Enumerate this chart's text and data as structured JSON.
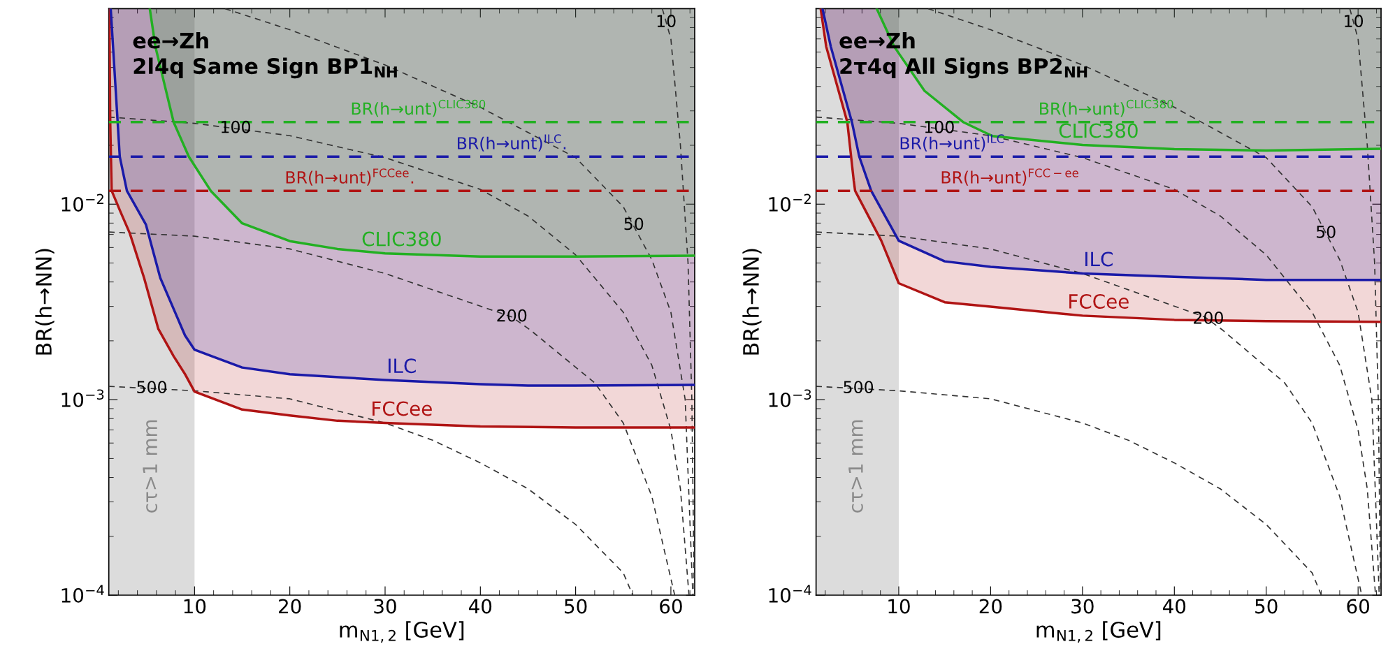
{
  "chart_data": [
    {
      "type": "line",
      "title": "ee→Zh\n2l4q Same Sign BP1$_{NH}$",
      "xlabel": "m$_{N1,2}$ [GeV]",
      "ylabel": "BR(h→NN)",
      "log": "y",
      "xlim": [
        1,
        62.5
      ],
      "xticks": [
        10,
        20,
        30,
        40,
        50,
        60
      ],
      "ylim": [
        0.0001,
        0.1
      ],
      "yticks": [
        {
          "value": 0.0001,
          "label": "10$^{−4}$"
        },
        {
          "value": 0.001,
          "label": "10$^{−3}$"
        },
        {
          "value": 0.01,
          "label": "10$^{−2}$"
        }
      ],
      "series": [
        {
          "name": "FCCee",
          "color": "#b01414",
          "line_style": "solid",
          "x": [
            1.05,
            1.15,
            1.3,
            2.2,
            3.2,
            4.7,
            6.2,
            7.8,
            9,
            10,
            15,
            20,
            25,
            30,
            40,
            50,
            62.5
          ],
          "values": [
            0.1,
            0.026,
            0.0117,
            0.0092,
            0.0071,
            0.0042,
            0.0023,
            0.00167,
            0.00135,
            0.0011,
            0.00089,
            0.00083,
            0.00078,
            0.00076,
            0.00073,
            0.00072,
            0.00072
          ]
        },
        {
          "name": "ILC",
          "color": "#1a1aa8",
          "line_style": "solid",
          "x": [
            1.2,
            2.15,
            2.9,
            4.9,
            6.4,
            9,
            10,
            15,
            20,
            30,
            40,
            45,
            50,
            62.5
          ],
          "values": [
            0.1,
            0.0175,
            0.0117,
            0.00785,
            0.0042,
            0.00213,
            0.0018,
            0.00146,
            0.00135,
            0.00126,
            0.0012,
            0.00118,
            0.00118,
            0.00119
          ]
        },
        {
          "name": "CLIC380",
          "color": "#22b022",
          "line_style": "solid",
          "x": [
            5.3,
            5.9,
            7.8,
            9.4,
            11.7,
            15,
            20,
            25,
            30,
            40,
            50,
            62.5
          ],
          "values": [
            0.1,
            0.0636,
            0.0263,
            0.0175,
            0.0117,
            0.00798,
            0.00647,
            0.0059,
            0.0056,
            0.0054,
            0.0054,
            0.00545
          ]
        },
        {
          "color": "#333333",
          "line_style": "dashed",
          "x": [
            1,
            10,
            20,
            30,
            35,
            40,
            45,
            50,
            55,
            56
          ],
          "values": [
            0.00117,
            0.00111,
            0.00101,
            0.00076,
            0.00062,
            0.000475,
            0.00035,
            0.00023,
            0.00013,
            0.0001
          ]
        },
        {
          "color": "#333333",
          "line_style": "dashed",
          "x": [
            1,
            10,
            20,
            30,
            43.3,
            45.2,
            52,
            55,
            58,
            60.4
          ],
          "values": [
            0.0072,
            0.00686,
            0.0059,
            0.00442,
            0.00265,
            0.00228,
            0.00122,
            0.00076,
            0.00032,
            0.0001
          ]
        },
        {
          "color": "#333333",
          "line_style": "dashed",
          "x": [
            1,
            10,
            20,
            30,
            40,
            45,
            50,
            55,
            58,
            60,
            61,
            61.9
          ],
          "values": [
            0.0279,
            0.0259,
            0.0224,
            0.0173,
            0.0119,
            0.0087,
            0.0055,
            0.0028,
            0.0015,
            0.0007,
            0.00035,
            0.0001
          ]
        },
        {
          "color": "#333333",
          "line_style": "dashed",
          "x": [
            13.2,
            20,
            30,
            40,
            50,
            55,
            58,
            60,
            61.5,
            62.3
          ],
          "values": [
            0.1,
            0.078,
            0.0515,
            0.0313,
            0.0173,
            0.0097,
            0.0052,
            0.0028,
            0.001,
            0.0001
          ]
        },
        {
          "color": "#333333",
          "line_style": "dashed",
          "x": [
            59.1,
            60,
            61,
            61.8,
            62.2,
            62.45
          ],
          "values": [
            0.1,
            0.07,
            0.02,
            0.005,
            0.001,
            0.0001
          ]
        }
      ],
      "ref_lines": [
        {
          "axis": "y",
          "value": 0.0263,
          "color": "#22b022",
          "line_style": "dashed"
        },
        {
          "axis": "y",
          "value": 0.0175,
          "color": "#1a1aa8",
          "line_style": "dashed"
        },
        {
          "axis": "y",
          "value": 0.0117,
          "color": "#b01414",
          "line_style": "dashed"
        }
      ],
      "bands": [
        {
          "axis": "x",
          "from": 1,
          "to": 10,
          "label": "cτ>1 mm",
          "color": "#dcdcdc"
        }
      ],
      "annotations": [
        {
          "text": "BR(h→unt)$^{CLIC380}$",
          "x": 33.5,
          "y": 0.0263
        },
        {
          "text": "BR(h→unt)$^{ILC}$.",
          "x": 43.3,
          "y": 0.0175
        },
        {
          "text": "BR(h→unt)$^{FCCee}$.",
          "x": 26.3,
          "y": 0.0117
        },
        {
          "text": "10",
          "x": 59.5,
          "y": 0.085
        },
        {
          "text": "100",
          "x": 14.3,
          "y": 0.0244
        },
        {
          "text": "50",
          "x": 56.1,
          "y": 0.0078
        },
        {
          "text": "200",
          "x": 43.3,
          "y": 0.00265
        },
        {
          "text": "500",
          "x": 5.5,
          "y": 0.00114
        }
      ]
    },
    {
      "type": "line",
      "title": "ee→Zh\n2τ4q All Signs BP2$_{NH}$",
      "xlabel": "m$_{N1,2}$ [GeV]",
      "ylabel": "BR(h→NN)",
      "log": "y",
      "xlim": [
        1,
        62.5
      ],
      "xticks": [
        10,
        20,
        30,
        40,
        50,
        60
      ],
      "ylim": [
        0.0001,
        0.1
      ],
      "yticks": [
        {
          "value": 0.0001,
          "label": "10$^{−4}$"
        },
        {
          "value": 0.001,
          "label": "10$^{−3}$"
        },
        {
          "value": 0.01,
          "label": "10$^{−2}$"
        }
      ],
      "series": [
        {
          "name": "FCCee",
          "color": "#b01414",
          "line_style": "solid",
          "x": [
            1.5,
            2.1,
            4.4,
            5.1,
            5.25,
            8.1,
            10,
            15,
            20,
            30,
            40,
            50,
            62.5
          ],
          "values": [
            0.1,
            0.064,
            0.0263,
            0.0132,
            0.0117,
            0.0065,
            0.00394,
            0.00315,
            0.00299,
            0.00269,
            0.00256,
            0.00252,
            0.0025
          ]
        },
        {
          "name": "ILC",
          "color": "#1a1aa8",
          "line_style": "solid",
          "x": [
            1.7,
            2.6,
            4.9,
            5.7,
            7,
            10,
            15,
            20,
            30,
            40,
            50,
            62.5
          ],
          "values": [
            0.1,
            0.064,
            0.0263,
            0.0175,
            0.0117,
            0.0065,
            0.0051,
            0.00478,
            0.00442,
            0.00425,
            0.0041,
            0.0041
          ]
        },
        {
          "name": "CLIC380",
          "color": "#22b022",
          "line_style": "solid",
          "x": [
            7.6,
            9.5,
            12.8,
            17,
            20.2,
            30,
            40,
            50,
            62.5
          ],
          "values": [
            0.1,
            0.064,
            0.038,
            0.0263,
            0.0223,
            0.0201,
            0.0191,
            0.0188,
            0.0192
          ]
        },
        {
          "color": "#333333",
          "line_style": "dashed",
          "x": [
            1,
            10,
            20,
            30,
            35,
            40,
            45,
            50,
            55,
            56
          ],
          "values": [
            0.00117,
            0.00111,
            0.00101,
            0.00076,
            0.00062,
            0.000475,
            0.00035,
            0.00023,
            0.00013,
            0.0001
          ]
        },
        {
          "color": "#333333",
          "line_style": "dashed",
          "x": [
            1,
            10,
            20,
            30,
            43.3,
            45.2,
            52,
            55,
            58,
            60.4
          ],
          "values": [
            0.0072,
            0.00686,
            0.0059,
            0.00442,
            0.00265,
            0.00228,
            0.00122,
            0.00076,
            0.00032,
            0.0001
          ]
        },
        {
          "color": "#333333",
          "line_style": "dashed",
          "x": [
            1,
            10,
            20,
            30,
            40,
            45,
            50,
            55,
            58,
            60,
            61,
            61.9
          ],
          "values": [
            0.0279,
            0.0259,
            0.0224,
            0.0173,
            0.0119,
            0.0087,
            0.0055,
            0.0028,
            0.0015,
            0.0007,
            0.00035,
            0.0001
          ]
        },
        {
          "color": "#333333",
          "line_style": "dashed",
          "x": [
            13.2,
            20,
            30,
            40,
            50,
            55,
            58,
            60,
            61.5,
            62.3
          ],
          "values": [
            0.1,
            0.078,
            0.0515,
            0.0313,
            0.0173,
            0.0097,
            0.0052,
            0.0028,
            0.001,
            0.0001
          ]
        },
        {
          "color": "#333333",
          "line_style": "dashed",
          "x": [
            59.1,
            60,
            61,
            61.8,
            62.2,
            62.45
          ],
          "values": [
            0.1,
            0.07,
            0.02,
            0.005,
            0.001,
            0.0001
          ]
        }
      ],
      "ref_lines": [
        {
          "axis": "y",
          "value": 0.0263,
          "color": "#22b022",
          "line_style": "dashed"
        },
        {
          "axis": "y",
          "value": 0.0175,
          "color": "#1a1aa8",
          "line_style": "dashed"
        },
        {
          "axis": "y",
          "value": 0.0117,
          "color": "#b01414",
          "line_style": "dashed"
        }
      ],
      "bands": [
        {
          "axis": "x",
          "from": 1,
          "to": 10,
          "label": "cτ>1 mm",
          "color": "#dcdcdc"
        }
      ],
      "annotations": [
        {
          "text": "BR(h→unt)$^{CLIC380}$",
          "x": 32.6,
          "y": 0.0263
        },
        {
          "text": "BR(h→unt)$^{ILC}$",
          "x": 15.8,
          "y": 0.0175
        },
        {
          "text": "BR(h→unt)$^{FCC−ee}$",
          "x": 22.1,
          "y": 0.0117
        },
        {
          "text": "10",
          "x": 59.5,
          "y": 0.085
        },
        {
          "text": "100",
          "x": 14.4,
          "y": 0.0244
        },
        {
          "text": "50",
          "x": 56.5,
          "y": 0.0071
        },
        {
          "text": "200",
          "x": 43.7,
          "y": 0.00258
        },
        {
          "text": "500",
          "x": 5.6,
          "y": 0.00114
        }
      ]
    }
  ]
}
